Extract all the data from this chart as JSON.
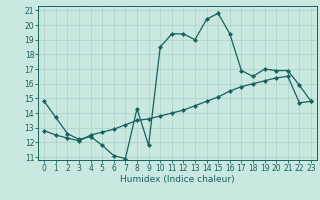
{
  "title": "",
  "xlabel": "Humidex (Indice chaleur)",
  "bg_color": "#c8e8e0",
  "grid_color": "#b0d4cc",
  "line_color": "#1a6060",
  "spine_color": "#1a6060",
  "xlim_min": -0.5,
  "xlim_max": 23.5,
  "ylim_min": 10.8,
  "ylim_max": 21.3,
  "yticks": [
    11,
    12,
    13,
    14,
    15,
    16,
    17,
    18,
    19,
    20,
    21
  ],
  "xticks": [
    0,
    1,
    2,
    3,
    4,
    5,
    6,
    7,
    8,
    9,
    10,
    11,
    12,
    13,
    14,
    15,
    16,
    17,
    18,
    19,
    20,
    21,
    22,
    23
  ],
  "line1_x": [
    0,
    1,
    2,
    3,
    4,
    5,
    6,
    7,
    8,
    9,
    10,
    11,
    12,
    13,
    14,
    15,
    16,
    17,
    18,
    19,
    20,
    21,
    22,
    23
  ],
  "line1_y": [
    14.8,
    13.7,
    12.6,
    12.2,
    12.4,
    11.8,
    11.1,
    10.9,
    14.3,
    11.8,
    18.5,
    19.4,
    19.4,
    19.0,
    20.4,
    20.8,
    19.4,
    16.9,
    16.5,
    17.0,
    16.9,
    16.9,
    15.9,
    14.8
  ],
  "line2_x": [
    0,
    1,
    2,
    3,
    4,
    5,
    6,
    7,
    8,
    9,
    10,
    11,
    12,
    13,
    14,
    15,
    16,
    17,
    18,
    19,
    20,
    21,
    22,
    23
  ],
  "line2_y": [
    12.8,
    12.5,
    12.3,
    12.1,
    12.5,
    12.7,
    12.9,
    13.2,
    13.5,
    13.6,
    13.8,
    14.0,
    14.2,
    14.5,
    14.8,
    15.1,
    15.5,
    15.8,
    16.0,
    16.2,
    16.4,
    16.5,
    14.7,
    14.8
  ],
  "tick_fontsize": 5.5,
  "xlabel_fontsize": 6.5,
  "marker": "D",
  "markersize": 2.0,
  "linewidth": 0.9
}
